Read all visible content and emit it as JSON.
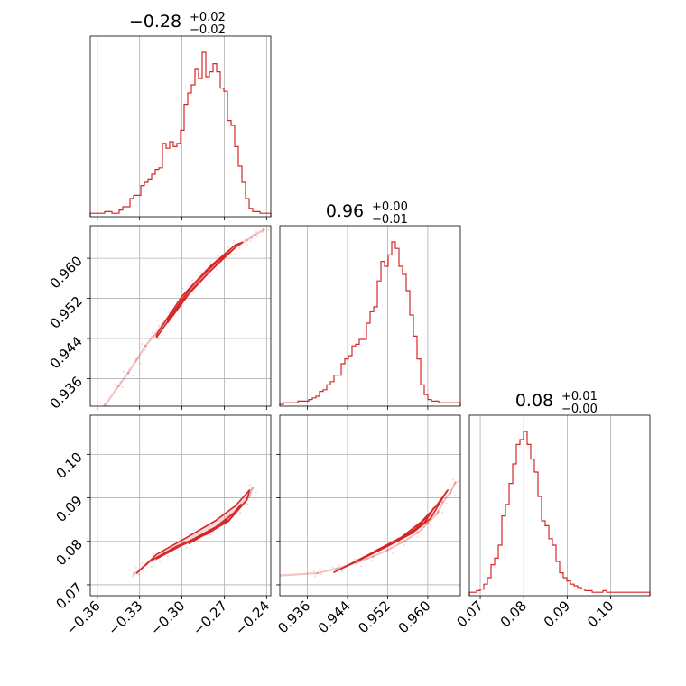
{
  "chart_data": {
    "type": "corner",
    "color": "#d62728",
    "parameters": [
      {
        "title": "−0.28",
        "title_plus": "+0.02",
        "title_minus": "−0.02",
        "range": [
          -0.365,
          -0.237
        ],
        "ticks": [
          -0.36,
          -0.33,
          -0.3,
          -0.27,
          -0.24
        ],
        "tick_labels": [
          "−0.36",
          "−0.33",
          "−0.30",
          "−0.27",
          "−0.24"
        ],
        "hist": {
          "edges_start": -0.365,
          "bin_width": 0.00256,
          "values": [
            1,
            1,
            1,
            1,
            2,
            2,
            1,
            1,
            3,
            5,
            5,
            10,
            12,
            12,
            18,
            20,
            22,
            25,
            28,
            29,
            44,
            41,
            45,
            42,
            44,
            52,
            68,
            75,
            80,
            90,
            84,
            100,
            85,
            88,
            93,
            88,
            78,
            76,
            58,
            55,
            42,
            30,
            20,
            10,
            4,
            2,
            2,
            1,
            1,
            1
          ]
        }
      },
      {
        "title": "0.96",
        "title_plus": "+0.00",
        "title_minus": "−0.01",
        "range": [
          0.9305,
          0.9665
        ],
        "ticks": [
          0.936,
          0.944,
          0.952,
          0.96
        ],
        "tick_labels": [
          "0.936",
          "0.944",
          "0.952",
          "0.960"
        ],
        "hist": {
          "edges_start": 0.9305,
          "bin_width": 0.00072,
          "values": [
            0,
            1,
            1,
            1,
            1,
            2,
            2,
            2,
            3,
            4,
            5,
            8,
            9,
            12,
            14,
            18,
            18,
            25,
            28,
            30,
            36,
            37,
            40,
            40,
            50,
            57,
            60,
            76,
            88,
            85,
            92,
            100,
            96,
            85,
            80,
            70,
            55,
            42,
            28,
            12,
            6,
            3,
            2,
            2,
            1,
            1,
            1,
            1,
            1,
            1
          ]
        }
      },
      {
        "title": "0.08",
        "title_plus": "+0.01",
        "title_minus": "−0.00",
        "range": [
          0.0675,
          0.109
        ],
        "ticks": [
          0.07,
          0.08,
          0.09,
          0.1
        ],
        "tick_labels": [
          "0.07",
          "0.08",
          "0.09",
          "0.10"
        ],
        "hist": {
          "edges_start": 0.0675,
          "bin_width": 0.00083,
          "values": [
            1,
            1,
            2,
            3,
            6,
            10,
            18,
            22,
            30,
            48,
            55,
            68,
            80,
            92,
            95,
            100,
            92,
            83,
            75,
            60,
            45,
            42,
            34,
            30,
            20,
            13,
            10,
            8,
            6,
            5,
            4,
            3,
            2,
            2,
            1,
            1,
            1,
            2,
            1,
            1,
            1,
            1,
            1,
            1,
            1,
            1,
            1,
            1,
            1,
            1
          ]
        }
      }
    ],
    "scatter": {
      "p0_p1": {
        "points": [
          [
            -0.355,
            0.9305
          ],
          [
            -0.345,
            0.9345
          ],
          [
            -0.338,
            0.9372
          ],
          [
            -0.332,
            0.9398
          ],
          [
            -0.326,
            0.9425
          ],
          [
            -0.32,
            0.9445
          ],
          [
            -0.314,
            0.9468
          ],
          [
            -0.308,
            0.949
          ],
          [
            -0.302,
            0.9512
          ],
          [
            -0.296,
            0.9532
          ],
          [
            -0.29,
            0.9552
          ],
          [
            -0.284,
            0.957
          ],
          [
            -0.278,
            0.9586
          ],
          [
            -0.272,
            0.9601
          ],
          [
            -0.266,
            0.9614
          ],
          [
            -0.26,
            0.9626
          ],
          [
            -0.254,
            0.9636
          ],
          [
            -0.248,
            0.9647
          ],
          [
            -0.242,
            0.9657
          ]
        ],
        "contours": [
          [
            [
              -0.318,
              0.9448
            ],
            [
              -0.3,
              0.9524
            ],
            [
              -0.28,
              0.9584
            ],
            [
              -0.262,
              0.9627
            ],
            [
              -0.257,
              0.9632
            ],
            [
              -0.262,
              0.9622
            ],
            [
              -0.28,
              0.9574
            ],
            [
              -0.3,
              0.9514
            ],
            [
              -0.318,
              0.9442
            ]
          ],
          [
            [
              -0.31,
              0.9478
            ],
            [
              -0.292,
              0.9548
            ],
            [
              -0.275,
              0.9594
            ],
            [
              -0.266,
              0.9612
            ],
            [
              -0.275,
              0.9588
            ],
            [
              -0.292,
              0.954
            ],
            [
              -0.31,
              0.9472
            ]
          ]
        ]
      },
      "p0_p2": {
        "points": [
          [
            -0.334,
            0.0725
          ],
          [
            -0.33,
            0.0735
          ],
          [
            -0.325,
            0.0748
          ],
          [
            -0.318,
            0.0762
          ],
          [
            -0.31,
            0.0775
          ],
          [
            -0.3,
            0.0792
          ],
          [
            -0.29,
            0.0808
          ],
          [
            -0.28,
            0.0825
          ],
          [
            -0.27,
            0.0845
          ],
          [
            -0.262,
            0.0866
          ],
          [
            -0.256,
            0.0888
          ],
          [
            -0.252,
            0.0905
          ],
          [
            -0.25,
            0.0922
          ]
        ],
        "contours": [
          [
            [
              -0.332,
              0.0727
            ],
            [
              -0.318,
              0.077
            ],
            [
              -0.296,
              0.081
            ],
            [
              -0.276,
              0.0848
            ],
            [
              -0.262,
              0.0882
            ],
            [
              -0.252,
              0.0918
            ],
            [
              -0.254,
              0.0895
            ],
            [
              -0.266,
              0.085
            ],
            [
              -0.282,
              0.0817
            ],
            [
              -0.303,
              0.079
            ],
            [
              -0.323,
              0.0754
            ],
            [
              -0.332,
              0.0727
            ]
          ],
          [
            [
              -0.318,
              0.076
            ],
            [
              -0.296,
              0.0798
            ],
            [
              -0.276,
              0.0833
            ],
            [
              -0.263,
              0.0866
            ],
            [
              -0.258,
              0.0885
            ],
            [
              -0.267,
              0.0846
            ],
            [
              -0.285,
              0.0814
            ],
            [
              -0.305,
              0.0783
            ],
            [
              -0.318,
              0.076
            ]
          ],
          [
            [
              -0.295,
              0.0795
            ],
            [
              -0.278,
              0.0826
            ],
            [
              -0.268,
              0.085
            ],
            [
              -0.283,
              0.0818
            ],
            [
              -0.295,
              0.0795
            ]
          ]
        ]
      },
      "p1_p2": {
        "points": [
          [
            0.9285,
            0.072
          ],
          [
            0.938,
            0.0727
          ],
          [
            0.942,
            0.0738
          ],
          [
            0.946,
            0.0752
          ],
          [
            0.949,
            0.0765
          ],
          [
            0.952,
            0.078
          ],
          [
            0.955,
            0.0798
          ],
          [
            0.958,
            0.082
          ],
          [
            0.96,
            0.0842
          ],
          [
            0.962,
            0.0866
          ],
          [
            0.963,
            0.089
          ],
          [
            0.9645,
            0.0912
          ],
          [
            0.9655,
            0.0935
          ]
        ],
        "contours": [
          [
            [
              0.9413,
              0.0729
            ],
            [
              0.9488,
              0.0773
            ],
            [
              0.9548,
              0.081
            ],
            [
              0.9588,
              0.0846
            ],
            [
              0.9616,
              0.088
            ],
            [
              0.964,
              0.0918
            ],
            [
              0.963,
              0.09
            ],
            [
              0.9606,
              0.0853
            ],
            [
              0.9568,
              0.0818
            ],
            [
              0.9519,
              0.0788
            ],
            [
              0.9455,
              0.0752
            ],
            [
              0.9413,
              0.0729
            ]
          ],
          [
            [
              0.9468,
              0.076
            ],
            [
              0.953,
              0.0795
            ],
            [
              0.9574,
              0.0828
            ],
            [
              0.9602,
              0.086
            ],
            [
              0.9613,
              0.0878
            ],
            [
              0.9592,
              0.084
            ],
            [
              0.9552,
              0.081
            ],
            [
              0.95,
              0.0781
            ],
            [
              0.9468,
              0.076
            ]
          ],
          [
            [
              0.953,
              0.0795
            ],
            [
              0.956,
              0.0814
            ],
            [
              0.959,
              0.0842
            ],
            [
              0.9566,
              0.0818
            ],
            [
              0.953,
              0.0795
            ]
          ]
        ]
      }
    }
  }
}
